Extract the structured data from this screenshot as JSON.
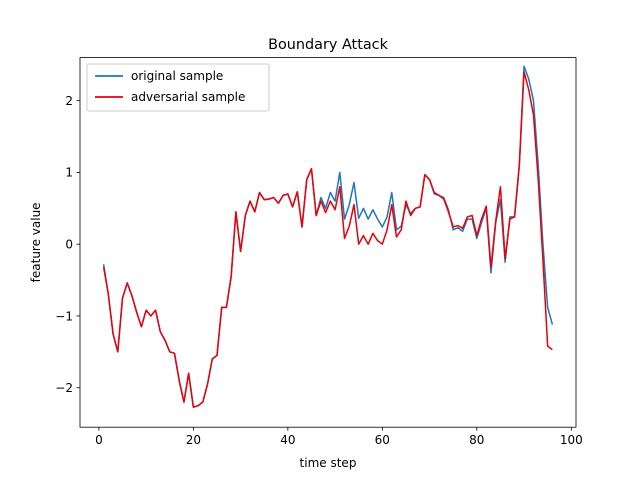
{
  "chart_data": {
    "type": "line",
    "title": "Boundary Attack",
    "xlabel": "time step",
    "ylabel": "feature value",
    "xlim": [
      -4,
      101
    ],
    "ylim": [
      -2.55,
      2.6
    ],
    "xticks": [
      0,
      20,
      40,
      60,
      80,
      100
    ],
    "yticks": [
      -2,
      -1,
      0,
      1,
      2
    ],
    "xtick_labels": [
      "0",
      "20",
      "40",
      "60",
      "80",
      "100"
    ],
    "ytick_labels": [
      "−2",
      "−1",
      "0",
      "1",
      "2"
    ],
    "grid": false,
    "legend_position": "upper-left",
    "x": [
      1,
      2,
      3,
      4,
      5,
      6,
      7,
      8,
      9,
      10,
      11,
      12,
      13,
      14,
      15,
      16,
      17,
      18,
      19,
      20,
      21,
      22,
      23,
      24,
      25,
      26,
      27,
      28,
      29,
      30,
      31,
      32,
      33,
      34,
      35,
      36,
      37,
      38,
      39,
      40,
      41,
      42,
      43,
      44,
      45,
      46,
      47,
      48,
      49,
      50,
      51,
      52,
      53,
      54,
      55,
      56,
      57,
      58,
      59,
      60,
      61,
      62,
      63,
      64,
      65,
      66,
      67,
      68,
      69,
      70,
      71,
      72,
      73,
      74,
      75,
      76,
      77,
      78,
      79,
      80,
      81,
      82,
      83,
      84,
      85,
      86,
      87,
      88,
      89,
      90,
      91,
      92,
      93,
      94,
      95,
      96
    ],
    "series": [
      {
        "name": "original sample",
        "color": "#1f77b4",
        "values": [
          -0.28,
          -0.7,
          -1.25,
          -1.5,
          -0.75,
          -0.54,
          -0.72,
          -0.95,
          -1.15,
          -0.92,
          -1.0,
          -0.92,
          -1.22,
          -1.34,
          -1.5,
          -1.52,
          -1.9,
          -2.2,
          -1.8,
          -2.27,
          -2.25,
          -2.2,
          -1.95,
          -1.6,
          -1.55,
          -0.88,
          -0.88,
          -0.45,
          0.45,
          -0.1,
          0.4,
          0.6,
          0.45,
          0.72,
          0.62,
          0.63,
          0.65,
          0.57,
          0.68,
          0.7,
          0.52,
          0.73,
          0.24,
          0.9,
          1.05,
          0.4,
          0.65,
          0.5,
          0.72,
          0.6,
          1.0,
          0.35,
          0.55,
          0.86,
          0.36,
          0.5,
          0.35,
          0.48,
          0.35,
          0.24,
          0.38,
          0.72,
          0.2,
          0.25,
          0.55,
          0.43,
          0.5,
          0.52,
          0.97,
          0.9,
          0.7,
          0.68,
          0.65,
          0.48,
          0.2,
          0.23,
          0.18,
          0.35,
          0.35,
          0.08,
          0.3,
          0.5,
          -0.4,
          0.3,
          0.62,
          -0.25,
          0.38,
          0.38,
          1.1,
          2.48,
          2.3,
          2.0,
          1.1,
          0.0,
          -0.88,
          -1.12
        ]
      },
      {
        "name": "adversarial sample",
        "color": "#e8000b",
        "values": [
          -0.32,
          -0.7,
          -1.25,
          -1.5,
          -0.75,
          -0.54,
          -0.72,
          -0.95,
          -1.15,
          -0.92,
          -1.0,
          -0.92,
          -1.22,
          -1.34,
          -1.5,
          -1.52,
          -1.9,
          -2.2,
          -1.8,
          -2.27,
          -2.25,
          -2.2,
          -1.95,
          -1.6,
          -1.55,
          -0.88,
          -0.88,
          -0.45,
          0.45,
          -0.1,
          0.4,
          0.6,
          0.45,
          0.72,
          0.62,
          0.63,
          0.65,
          0.57,
          0.68,
          0.7,
          0.52,
          0.73,
          0.24,
          0.9,
          1.05,
          0.4,
          0.6,
          0.44,
          0.6,
          0.48,
          0.8,
          0.08,
          0.25,
          0.55,
          0.0,
          0.12,
          0.0,
          0.15,
          0.05,
          0.0,
          0.2,
          0.55,
          0.1,
          0.2,
          0.6,
          0.4,
          0.5,
          0.52,
          0.97,
          0.9,
          0.72,
          0.68,
          0.63,
          0.45,
          0.24,
          0.26,
          0.22,
          0.38,
          0.4,
          0.12,
          0.35,
          0.53,
          -0.32,
          0.32,
          0.8,
          -0.2,
          0.35,
          0.38,
          1.1,
          2.4,
          2.15,
          1.8,
          0.9,
          -0.22,
          -1.42,
          -1.47
        ]
      }
    ]
  }
}
